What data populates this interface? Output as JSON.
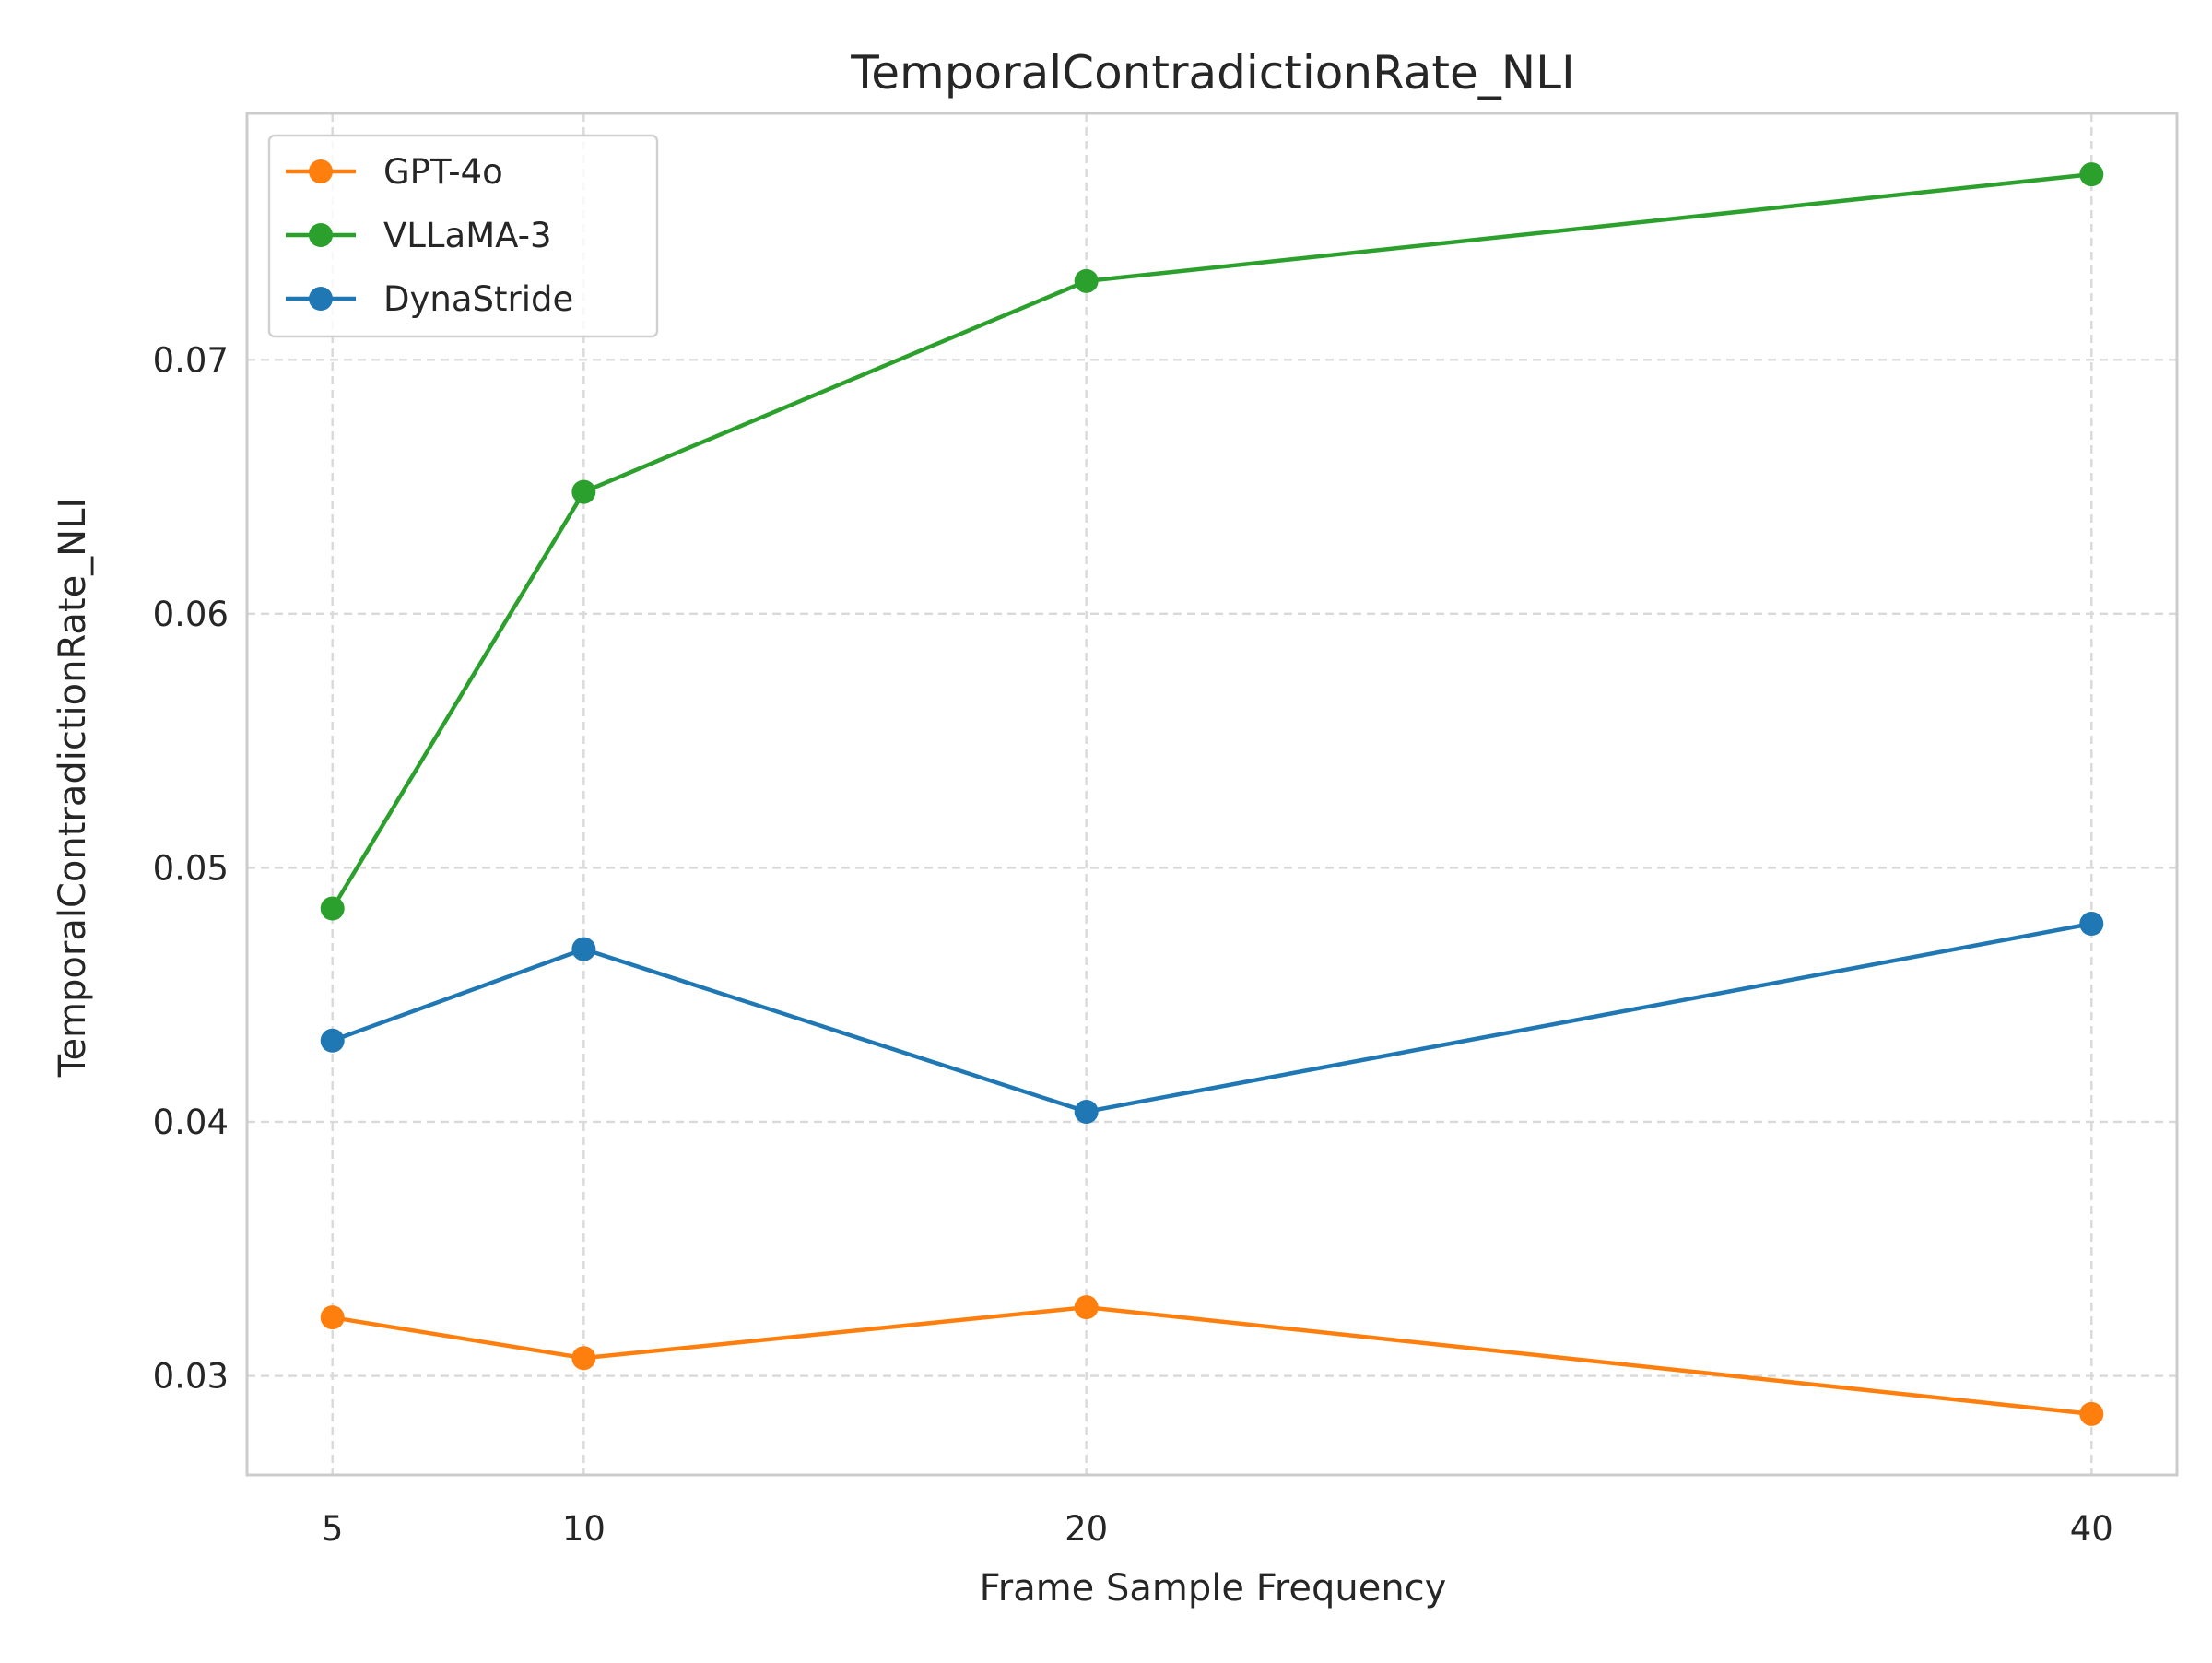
{
  "chart_data": {
    "type": "line",
    "title": "TemporalContradictionRate_NLI",
    "xlabel": "Frame Sample Frequency",
    "ylabel": "TemporalContradictionRate_NLI",
    "x": [
      5,
      10,
      20,
      40
    ],
    "x_ticks": [
      "5",
      "10",
      "20",
      "40"
    ],
    "xlim": [
      3.3,
      41.7
    ],
    "y_ticks": [
      "0.03",
      "0.04",
      "0.05",
      "0.06",
      "0.07"
    ],
    "ylim": [
      0.0261,
      0.0797
    ],
    "grid": true,
    "legend_position": "top-left",
    "series": [
      {
        "name": "GPT-4o",
        "color": "#ff7f0e",
        "values": [
          0.0323,
          0.0307,
          0.0327,
          0.0285
        ]
      },
      {
        "name": "VLLaMA-3",
        "color": "#2ca02c",
        "values": [
          0.0484,
          0.0648,
          0.0731,
          0.0773
        ]
      },
      {
        "name": "DynaStride",
        "color": "#1f77b4",
        "values": [
          0.0432,
          0.0468,
          0.0404,
          0.0478
        ]
      }
    ]
  }
}
